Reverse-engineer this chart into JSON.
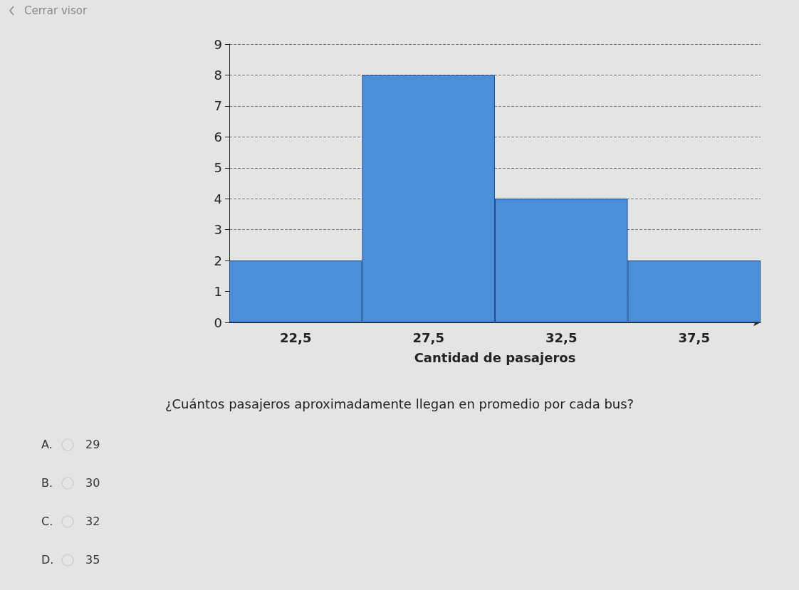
{
  "chart_data": {
    "type": "bar",
    "categories": [
      "22,5",
      "27,5",
      "32,5",
      "37,5"
    ],
    "values": [
      2,
      8,
      4,
      2
    ],
    "color": "#4a8fd8",
    "xlabel": "Cantidad de pasajeros",
    "ylim": [
      0,
      9
    ],
    "yticks": [
      0,
      1,
      2,
      3,
      4,
      5,
      6,
      7,
      8,
      9
    ],
    "grid": "y",
    "line_style": "dashed",
    "annotations": [
      "Cerrar visor",
      "¿Cuántos pasajeros aproximadamente llegan en promedio por cada bus?",
      "A. 29",
      "B. 30",
      "C. 32",
      "D. 35"
    ]
  }
}
